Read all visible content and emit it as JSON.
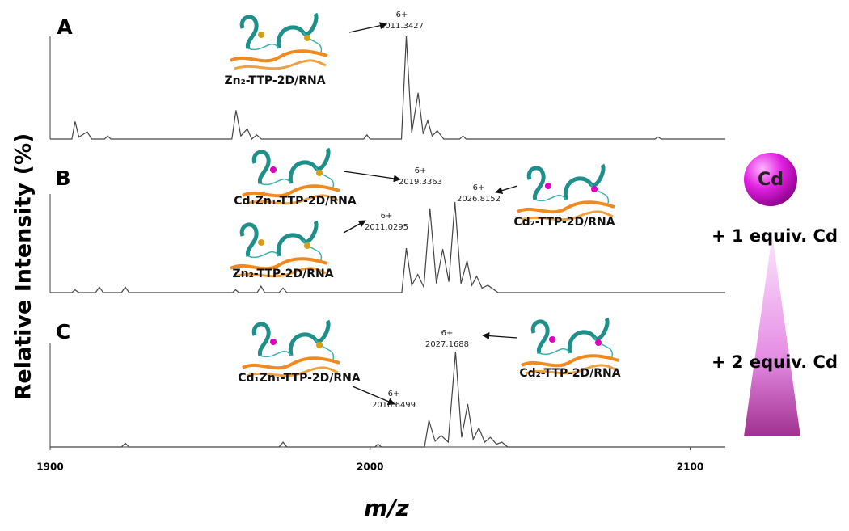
{
  "y_label": "Relative Intensity (%)",
  "x_label": "m/z",
  "chart_data": [
    {
      "type": "line",
      "panel": "A",
      "xlim": [
        1900,
        2111
      ],
      "ylim": [
        0,
        100
      ],
      "x": [
        1900,
        1906.8,
        1907.8,
        1909,
        1911.6,
        1913,
        1917,
        1918,
        1919,
        1956.8,
        1958.1,
        1959.6,
        1961.6,
        1963,
        1964.6,
        1966,
        1998,
        1999,
        2000,
        2009.8,
        2011.3,
        2013,
        2015,
        2016.6,
        2018,
        2019.4,
        2021,
        2023,
        2028,
        2029,
        2030,
        2089,
        2090,
        2091,
        2111
      ],
      "series": [
        {
          "color": "#444444",
          "values": [
            0,
            0,
            17,
            2,
            7,
            0,
            0,
            3,
            0,
            0,
            28,
            3,
            10,
            0,
            4,
            0,
            0,
            4,
            0,
            0,
            100,
            6,
            45,
            5,
            18,
            3,
            8,
            0,
            0,
            3,
            0,
            0,
            2,
            0,
            0
          ]
        }
      ],
      "annotations": [
        {
          "charge": "6+",
          "mz": "2011.3427"
        }
      ],
      "species": [
        "Zn₂-TTP-2D/RNA"
      ]
    },
    {
      "type": "line",
      "panel": "B",
      "xlim": [
        1900,
        2111
      ],
      "ylim": [
        0,
        100
      ],
      "x": [
        1900,
        1906.8,
        1907.8,
        1909,
        1914.2,
        1915.4,
        1916.6,
        1922.3,
        1923.5,
        1924.7,
        1957,
        1958,
        1959,
        1964.7,
        1965.9,
        1967.1,
        1971.5,
        1972.8,
        1974,
        2009.9,
        2011.3,
        2013,
        2014.9,
        2016.8,
        2018.7,
        2020.7,
        2022.7,
        2024.6,
        2026.5,
        2028.4,
        2030.3,
        2031.8,
        2033.3,
        2035,
        2036.8,
        2040,
        2111
      ],
      "series": [
        {
          "color": "#444444",
          "values": [
            0,
            0,
            3,
            0,
            0,
            6,
            0,
            0,
            6,
            0,
            0,
            3,
            0,
            0,
            7,
            0,
            0,
            5,
            0,
            0,
            49,
            8,
            20,
            6,
            93,
            10,
            48,
            12,
            100,
            10,
            35,
            8,
            18,
            5,
            8,
            0,
            0
          ]
        }
      ],
      "annotations": [
        {
          "charge": "6+",
          "mz": "2019.3363"
        },
        {
          "charge": "6+",
          "mz": "2026.8152"
        },
        {
          "charge": "6+",
          "mz": "2011.0295"
        }
      ],
      "species": [
        "Cd₁Zn₁-TTP-2D/RNA",
        "Cd₂-TTP-2D/RNA",
        "Zn₂-TTP-2D/RNA"
      ]
    },
    {
      "type": "line",
      "panel": "C",
      "xlim": [
        1900,
        2111
      ],
      "ylim": [
        0,
        100
      ],
      "xticks": [
        1900,
        2000,
        2100
      ],
      "x": [
        1900,
        1922.3,
        1923.5,
        1924.7,
        1971.5,
        1972.8,
        1974,
        2001.5,
        2002.5,
        2003.5,
        2017,
        2018.4,
        2020.3,
        2022.2,
        2024.4,
        2026.7,
        2028.6,
        2030.5,
        2032.2,
        2034,
        2035.8,
        2037.6,
        2039.5,
        2041.2,
        2043,
        2111
      ],
      "series": [
        {
          "color": "#444444",
          "values": [
            0,
            0,
            4,
            0,
            0,
            5,
            0,
            0,
            3,
            0,
            0,
            28,
            6,
            12,
            5,
            100,
            10,
            45,
            8,
            20,
            5,
            10,
            3,
            5,
            0,
            0
          ]
        }
      ],
      "annotations": [
        {
          "charge": "6+",
          "mz": "2027.1688"
        },
        {
          "charge": "6+",
          "mz": "2018.6499"
        }
      ],
      "species": [
        "Cd₁Zn₁-TTP-2D/RNA",
        "Cd₂-TTP-2D/RNA"
      ]
    }
  ],
  "cadmium": {
    "ion": "Cd",
    "steps": [
      "+ 1 equiv. Cd",
      "+ 2 equiv. Cd"
    ]
  }
}
